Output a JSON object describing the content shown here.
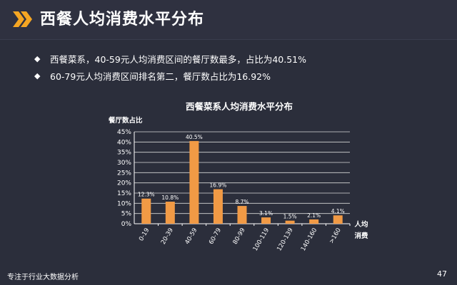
{
  "header": {
    "title": "西餐人均消费水平分布"
  },
  "bullets": [
    "西餐菜系，40-59元人均消费区间的餐厅数最多，占比为40.51%",
    "60-79元人均消费区间排名第二，餐厅数占比为16.92%"
  ],
  "footer": {
    "text": "专注于行业大数据分析",
    "page": "47"
  },
  "colors": {
    "background": "#2b2e3b",
    "bar": "#f19a45",
    "accent": "#f5a623"
  },
  "chart_data": {
    "type": "bar",
    "title": "西餐菜系人均消费水平分布",
    "ylabel": "餐厅数占比",
    "xlabel_lines": [
      "人均",
      "消费"
    ],
    "ylim": [
      0,
      45
    ],
    "yticks": [
      "0%",
      "5%",
      "10%",
      "15%",
      "20%",
      "25%",
      "30%",
      "35%",
      "40%",
      "45%"
    ],
    "categories": [
      "0-19",
      "20-39",
      "40-59",
      "60-79",
      "80-99",
      "100-119",
      "120-139",
      "140-160",
      ">160"
    ],
    "values": [
      12.3,
      10.8,
      40.5,
      16.9,
      8.7,
      3.1,
      1.5,
      2.1,
      4.1
    ],
    "labels": [
      "12.3%",
      "10.8%",
      "40.5%",
      "16.9%",
      "8.7%",
      "3.1%",
      "1.5%",
      "2.1%",
      "4.1%"
    ],
    "grid": true
  }
}
